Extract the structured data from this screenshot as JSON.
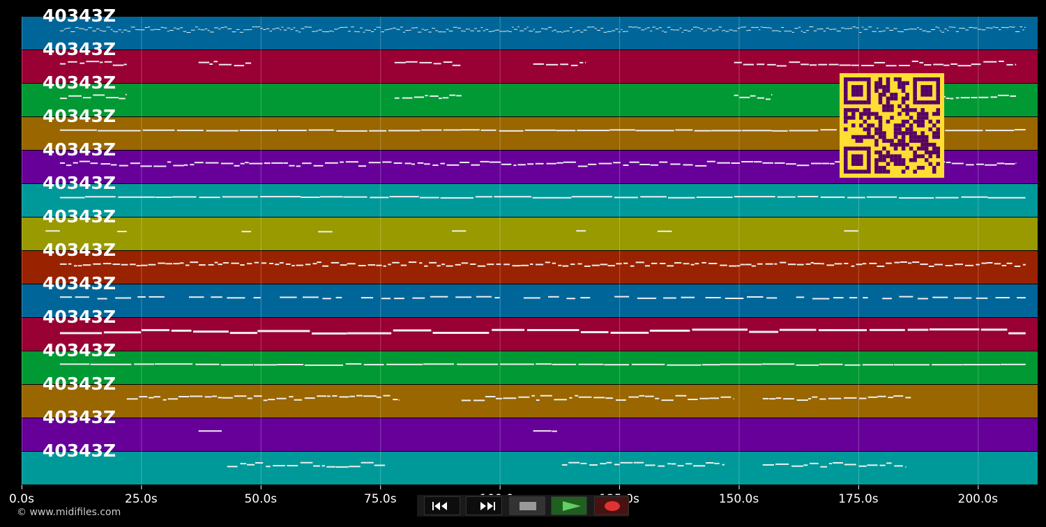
{
  "track_label": "40343Z",
  "tracks": [
    {
      "color": "#006699"
    },
    {
      "color": "#990033"
    },
    {
      "color": "#009933"
    },
    {
      "color": "#996600"
    },
    {
      "color": "#660099"
    },
    {
      "color": "#009999"
    },
    {
      "color": "#999900"
    },
    {
      "color": "#992200"
    },
    {
      "color": "#006699"
    },
    {
      "color": "#990033"
    },
    {
      "color": "#009933"
    },
    {
      "color": "#996600"
    },
    {
      "color": "#660099"
    },
    {
      "color": "#009999"
    }
  ],
  "axis": {
    "unit": "s",
    "max_seconds": 212.5,
    "ticks": [
      "0.0s",
      "25.0s",
      "50.0s",
      "75.0s",
      "100.0s",
      "125.0s",
      "150.0s",
      "175.0s",
      "200.0s"
    ]
  },
  "copyright": "© www.midifiles.com",
  "qr_colors": {
    "bg": "#ffdd33",
    "fg": "#550066"
  },
  "transport": {
    "rewind": "rewind-icon",
    "fast_forward": "fast-forward-icon",
    "stop": "stop-icon",
    "play": "play-icon",
    "record": "record-icon"
  }
}
